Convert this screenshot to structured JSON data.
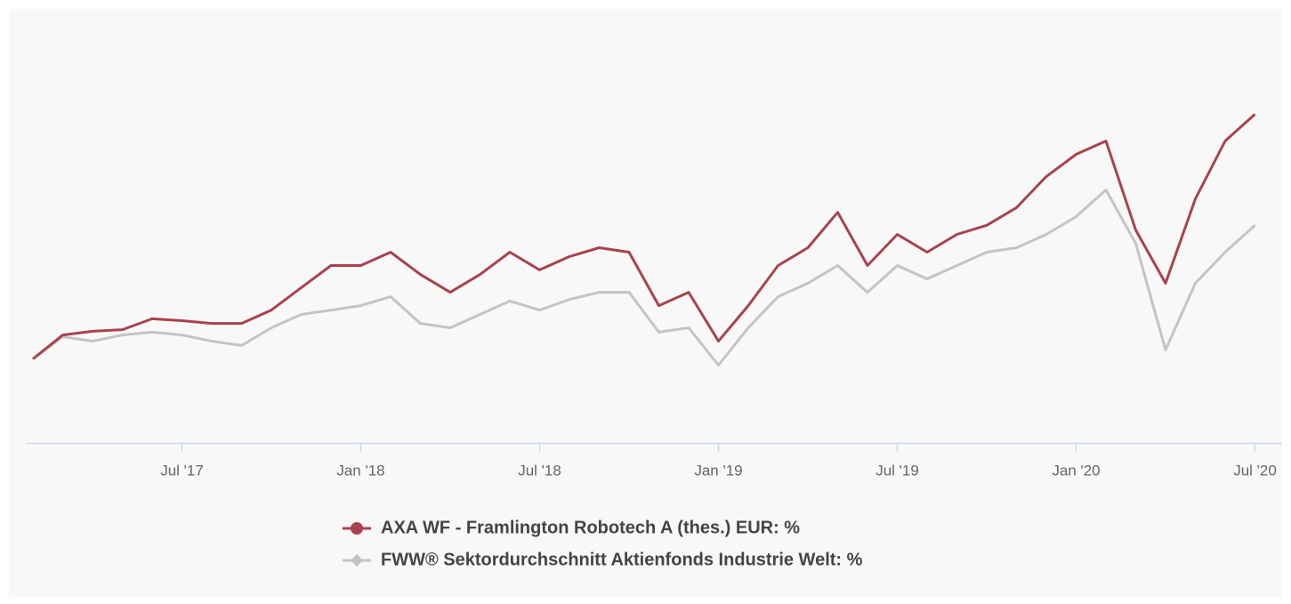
{
  "chart_data": {
    "type": "line",
    "x": [
      "2017-02",
      "2017-03",
      "2017-04",
      "2017-05",
      "2017-06",
      "2017-07",
      "2017-08",
      "2017-09",
      "2017-10",
      "2017-11",
      "2017-12",
      "2018-01",
      "2018-02",
      "2018-03",
      "2018-04",
      "2018-05",
      "2018-06",
      "2018-07",
      "2018-08",
      "2018-09",
      "2018-10",
      "2018-11",
      "2018-12",
      "2019-01",
      "2019-02",
      "2019-03",
      "2019-04",
      "2019-05",
      "2019-06",
      "2019-07",
      "2019-08",
      "2019-09",
      "2019-10",
      "2019-11",
      "2019-12",
      "2020-01",
      "2020-02",
      "2020-03",
      "2020-04",
      "2020-05",
      "2020-06",
      "2020-07"
    ],
    "series": [
      {
        "name": "AXA WF - Framlington Robotech A (thes.) EUR: %",
        "color": "#a8434e",
        "marker": "circle",
        "values": [
          0,
          7.7,
          8.9,
          9.4,
          12.9,
          12.3,
          11.4,
          11.4,
          15.7,
          22.9,
          30,
          30,
          34.3,
          27.1,
          21.4,
          27.1,
          34.3,
          28.6,
          32.9,
          35.7,
          34.3,
          17.1,
          21.4,
          5.7,
          17.1,
          30,
          35.7,
          47.1,
          30,
          40,
          34.3,
          40,
          42.9,
          48.6,
          58.6,
          65.7,
          70,
          41.4,
          24.3,
          51.4,
          70,
          78.6
        ]
      },
      {
        "name": "FWW® Sektordurchschnitt Aktienfonds Industrie Welt: %",
        "color": "#c4c4c4",
        "marker": "diamond",
        "values": [
          0,
          7.1,
          5.7,
          7.7,
          8.6,
          7.7,
          5.7,
          4.3,
          10,
          14.3,
          15.7,
          17.1,
          20,
          11.4,
          10,
          14.3,
          18.6,
          15.7,
          19.1,
          21.4,
          21.4,
          8.6,
          10,
          -2,
          10,
          20,
          24.3,
          30,
          21.4,
          30,
          25.7,
          30,
          34.3,
          35.7,
          40,
          45.7,
          54.3,
          37.1,
          2.9,
          24.3,
          34.3,
          42.9
        ]
      }
    ],
    "ylim": [
      -27,
      110
    ],
    "xticks": [
      {
        "value": "2017-07",
        "label": "Jul '17"
      },
      {
        "value": "2018-01",
        "label": "Jan '18"
      },
      {
        "value": "2018-07",
        "label": "Jul '18"
      },
      {
        "value": "2019-01",
        "label": "Jan '19"
      },
      {
        "value": "2019-07",
        "label": "Jul '19"
      },
      {
        "value": "2020-01",
        "label": "Jan '20"
      },
      {
        "value": "2020-07",
        "label": "Jul '20"
      }
    ],
    "grid": false,
    "legend": "bottom"
  }
}
